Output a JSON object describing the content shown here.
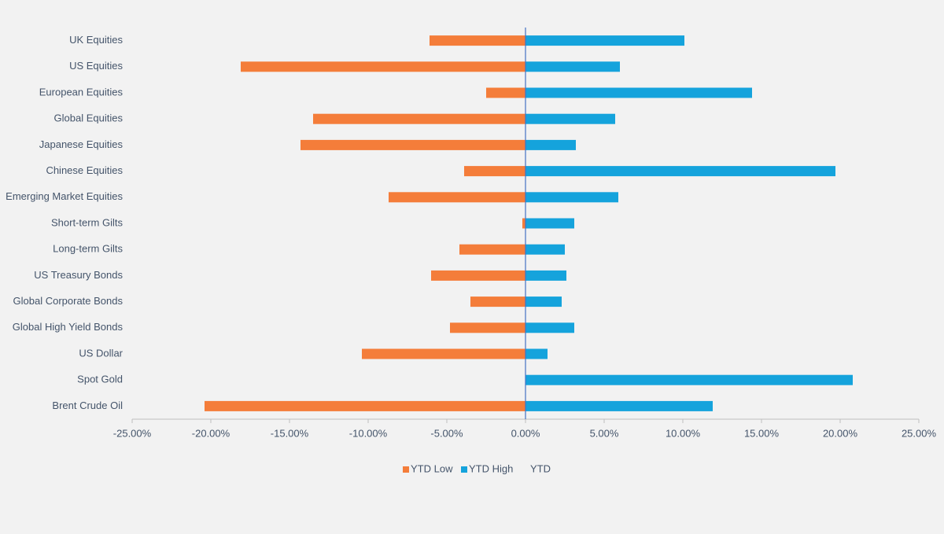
{
  "chart_data": {
    "type": "bar",
    "orientation": "horizontal",
    "categories": [
      "UK Equities",
      "US Equities",
      "European Equities",
      "Global Equities",
      "Japanese Equities",
      "Chinese Equities",
      "Emerging Market Equities",
      "Short-term Gilts",
      "Long-term Gilts",
      "US Treasury Bonds",
      "Global Corporate Bonds",
      "Global High Yield Bonds",
      "US Dollar",
      "Spot Gold",
      "Brent Crude Oil"
    ],
    "series": [
      {
        "name": "YTD Low",
        "color": "#f47d3a",
        "values": [
          -6.1,
          -18.1,
          -2.5,
          -13.5,
          -14.3,
          -3.9,
          -8.7,
          -0.2,
          -4.2,
          -6.0,
          -3.5,
          -4.8,
          -10.4,
          0,
          -20.4
        ]
      },
      {
        "name": "YTD High",
        "color": "#15a3dc",
        "values": [
          10.1,
          6.0,
          14.4,
          5.7,
          3.2,
          19.7,
          5.9,
          3.1,
          2.5,
          2.6,
          2.3,
          3.1,
          1.4,
          20.8,
          11.9
        ]
      },
      {
        "name": "YTD",
        "color": null,
        "values": [
          null,
          null,
          null,
          null,
          null,
          null,
          null,
          null,
          null,
          null,
          null,
          null,
          null,
          null,
          null
        ]
      }
    ],
    "xlim": [
      -25,
      25
    ],
    "xticks": [
      {
        "value": -25,
        "label": "-25.00%"
      },
      {
        "value": -20,
        "label": "-20.00%"
      },
      {
        "value": -15,
        "label": "-15.00%"
      },
      {
        "value": -10,
        "label": "-10.00%"
      },
      {
        "value": -5,
        "label": "-5.00%"
      },
      {
        "value": 0,
        "label": "0.00%"
      },
      {
        "value": 5,
        "label": "5.00%"
      },
      {
        "value": 10,
        "label": "10.00%"
      },
      {
        "value": 15,
        "label": "15.00%"
      },
      {
        "value": 20,
        "label": "20.00%"
      },
      {
        "value": 25,
        "label": "25.00%"
      }
    ],
    "grid": false,
    "legend": "bottom"
  }
}
